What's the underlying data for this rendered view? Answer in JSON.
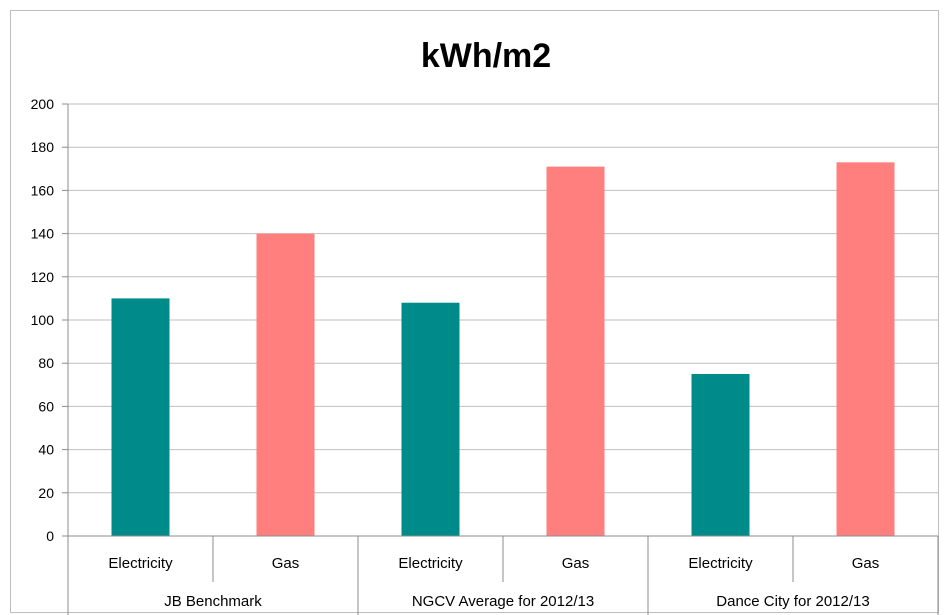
{
  "chart_data": {
    "type": "bar",
    "title": "kWh/m2",
    "xlabel": "",
    "ylabel": "",
    "ylim": [
      0,
      200
    ],
    "yticks": [
      0,
      20,
      40,
      60,
      80,
      100,
      120,
      140,
      160,
      180,
      200
    ],
    "grid": true,
    "legend": "none",
    "categories": [
      "Electricity",
      "Gas",
      "Electricity",
      "Gas",
      "Electricity",
      "Gas"
    ],
    "groups": [
      {
        "label": "JB Benchmark",
        "span": 2
      },
      {
        "label": "NGCV Average for 2012/13",
        "span": 2
      },
      {
        "label": "Dance City for 2012/13",
        "span": 2
      }
    ],
    "values": [
      110,
      140,
      108,
      171,
      75,
      173
    ],
    "colors": [
      "#008B8B",
      "#FF7F7F",
      "#008B8B",
      "#FF7F7F",
      "#008B8B",
      "#FF7F7F"
    ]
  }
}
